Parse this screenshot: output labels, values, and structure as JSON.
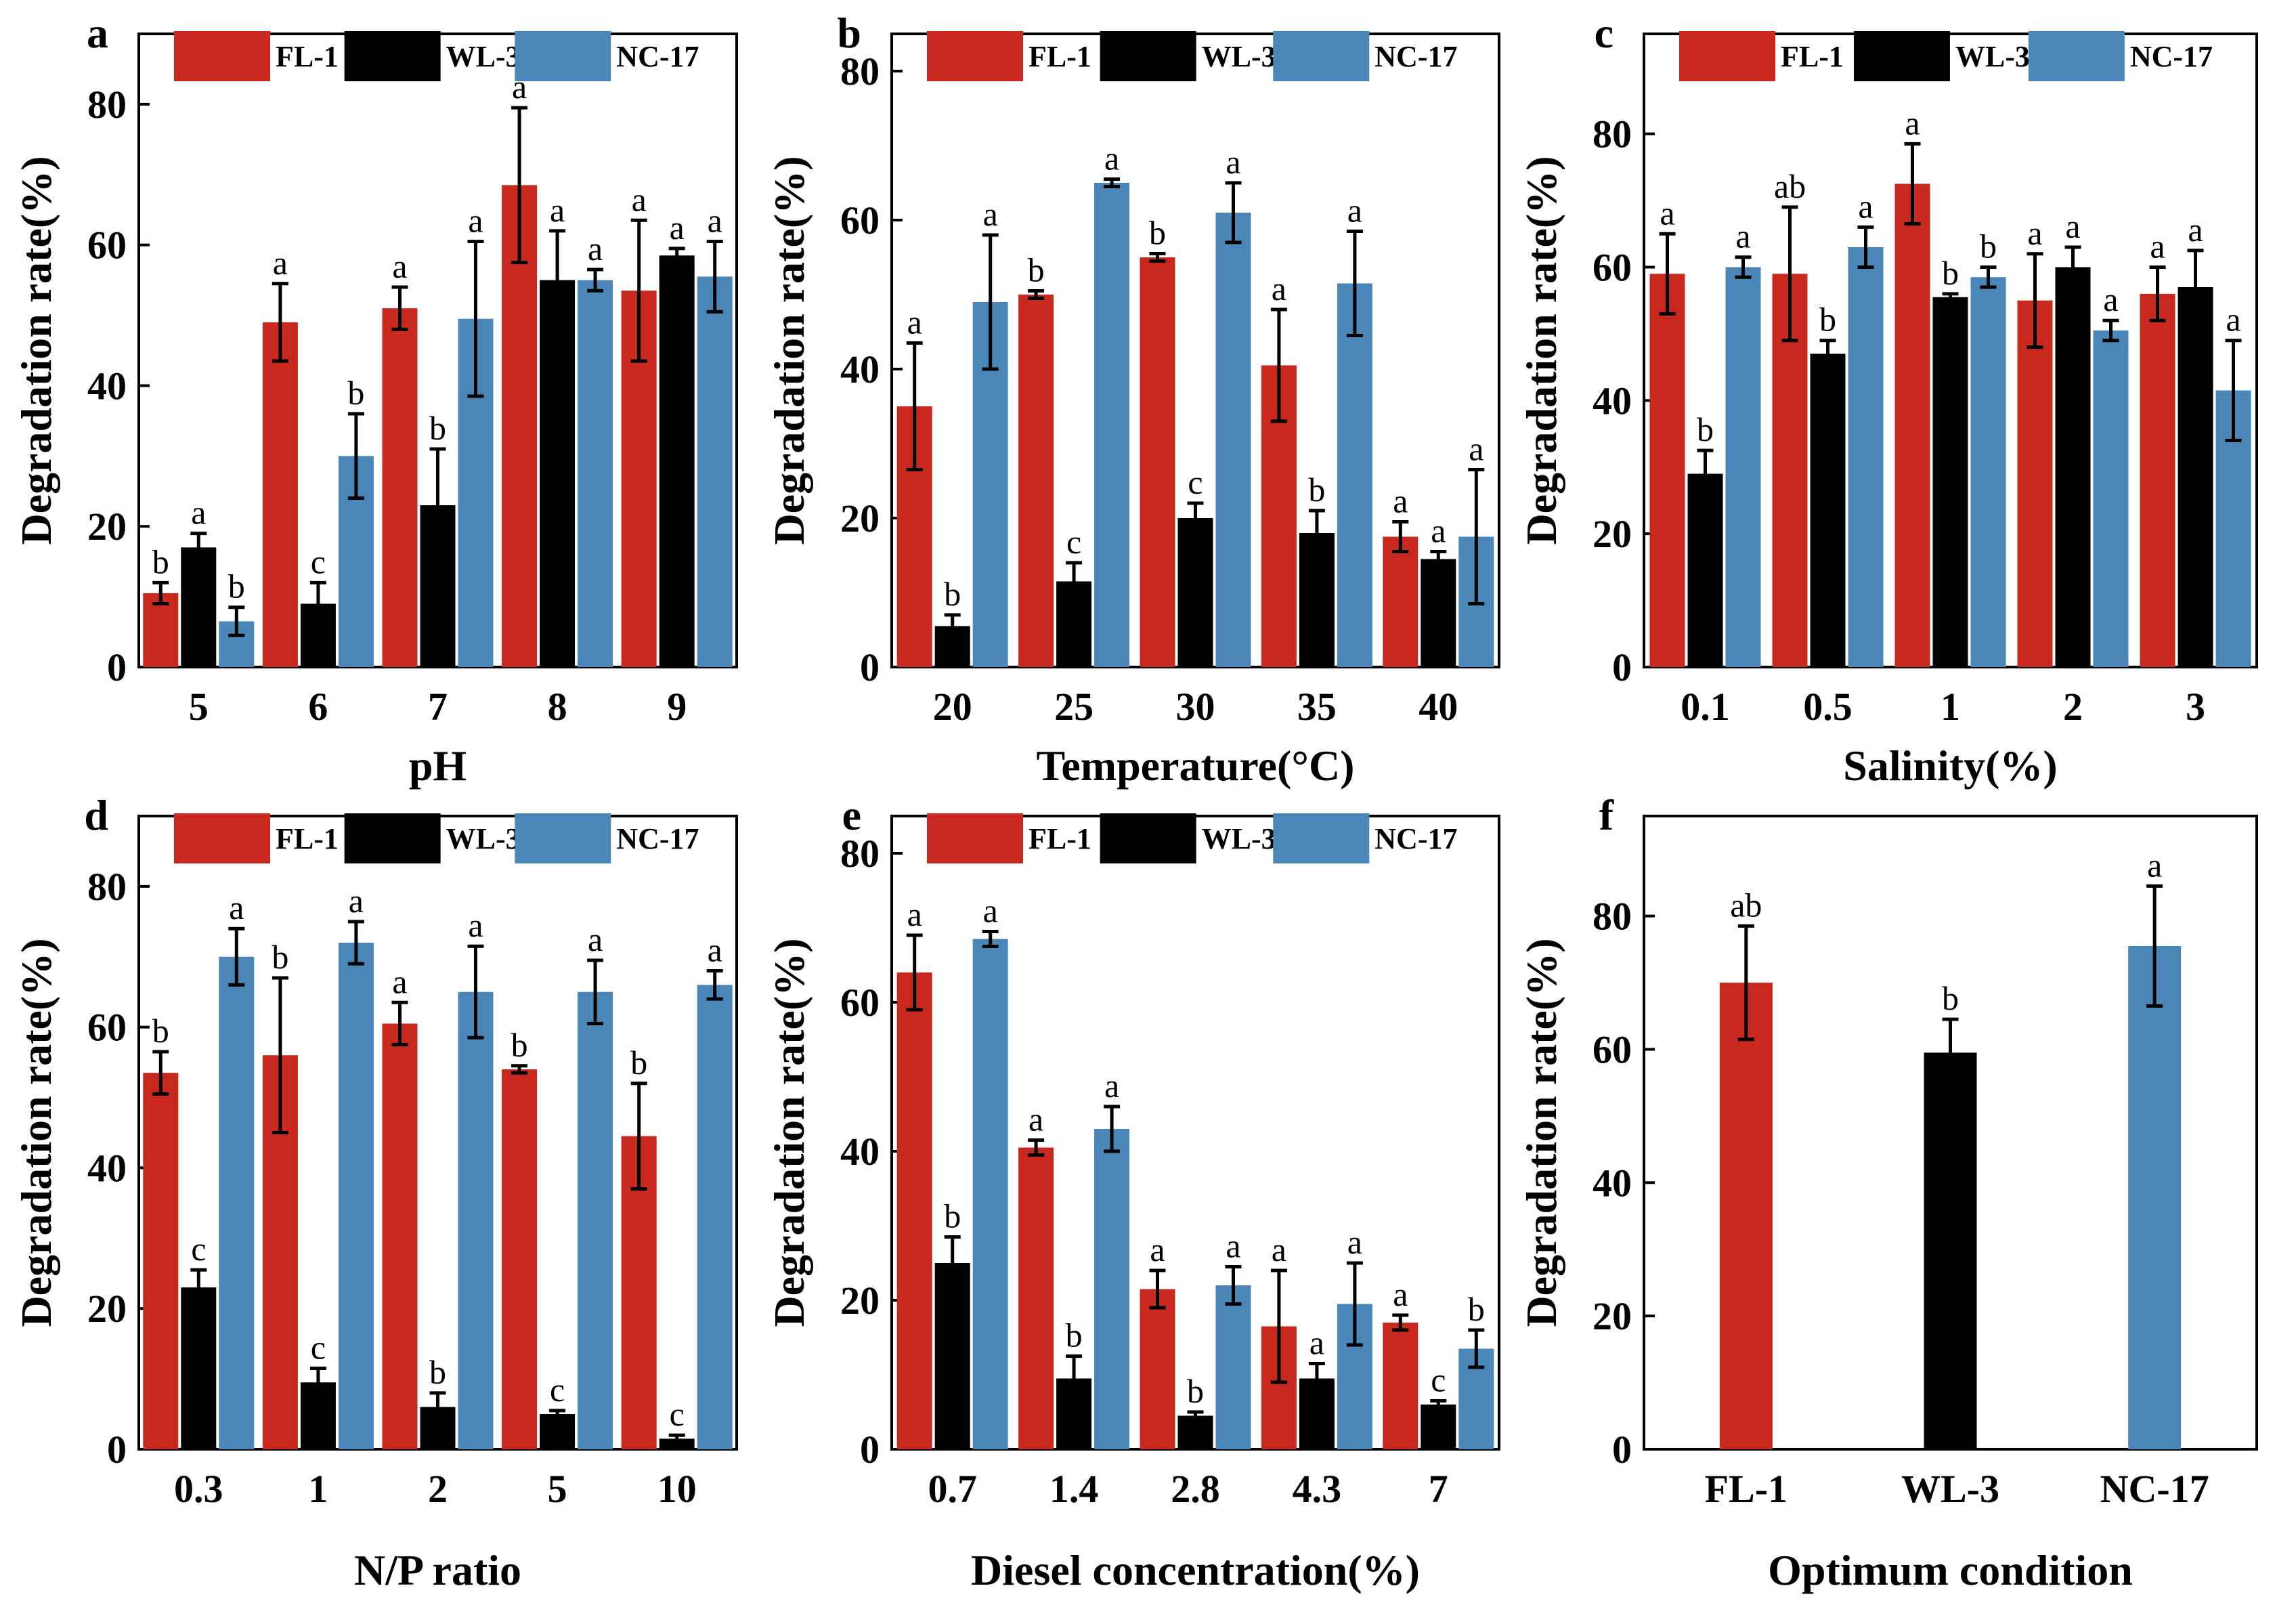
{
  "series_colors": {
    "FL-1": "#c8281e",
    "WL-3": "#000000",
    "NC-17": "#4a87b8"
  },
  "chart_data": [
    {
      "panel": "a",
      "type": "bar",
      "xlabel": "pH",
      "ylabel": "Degradation rate(%)",
      "ylim": [
        0,
        90
      ],
      "yticks": [
        0,
        20,
        40,
        60,
        80
      ],
      "legend": true,
      "categories": [
        "5",
        "6",
        "7",
        "8",
        "9"
      ],
      "series": [
        {
          "name": "FL-1",
          "values": [
            10.5,
            49,
            51,
            68.5,
            53.5
          ],
          "errors": [
            1.5,
            5.5,
            3,
            11,
            10
          ],
          "labels": [
            "b",
            "a",
            "a",
            "a",
            "a"
          ]
        },
        {
          "name": "WL-3",
          "values": [
            17,
            9,
            23,
            55,
            58.5
          ],
          "errors": [
            2,
            3,
            8,
            7,
            1
          ],
          "labels": [
            "a",
            "c",
            "b",
            "a",
            "a"
          ]
        },
        {
          "name": "NC-17",
          "values": [
            6.5,
            30,
            49.5,
            55,
            55.5
          ],
          "errors": [
            2,
            6,
            11,
            1.5,
            5
          ],
          "labels": [
            "b",
            "b",
            "a",
            "a",
            "a"
          ]
        }
      ]
    },
    {
      "panel": "b",
      "type": "bar",
      "xlabel": "Temperature(°C)",
      "ylabel": "Degradation rate(%)",
      "ylim": [
        0,
        85
      ],
      "yticks": [
        0,
        20,
        40,
        60,
        80
      ],
      "legend": true,
      "categories": [
        "20",
        "25",
        "30",
        "35",
        "40"
      ],
      "series": [
        {
          "name": "FL-1",
          "values": [
            35,
            50,
            55,
            40.5,
            17.5
          ],
          "errors": [
            8.5,
            0.5,
            0.5,
            7.5,
            2
          ],
          "labels": [
            "a",
            "b",
            "b",
            "a",
            "a"
          ]
        },
        {
          "name": "WL-3",
          "values": [
            5.5,
            11.5,
            20,
            18,
            14.5
          ],
          "errors": [
            1.5,
            2.5,
            2,
            3,
            1
          ],
          "labels": [
            "b",
            "c",
            "c",
            "b",
            "a"
          ]
        },
        {
          "name": "NC-17",
          "values": [
            49,
            65,
            61,
            51.5,
            17.5
          ],
          "errors": [
            9,
            0.5,
            4,
            7,
            9
          ],
          "labels": [
            "a",
            "a",
            "a",
            "a",
            "a"
          ]
        }
      ]
    },
    {
      "panel": "c",
      "type": "bar",
      "xlabel": "Salinity(%)",
      "ylabel": "Degradation rate(%)",
      "ylim": [
        0,
        95
      ],
      "yticks": [
        0,
        20,
        40,
        60,
        80
      ],
      "legend": true,
      "categories": [
        "0.1",
        "0.5",
        "1",
        "2",
        "3"
      ],
      "series": [
        {
          "name": "FL-1",
          "values": [
            59,
            59,
            72.5,
            55,
            56
          ],
          "errors": [
            6,
            10,
            6,
            7,
            4
          ],
          "labels": [
            "a",
            "ab",
            "a",
            "a",
            "a"
          ]
        },
        {
          "name": "WL-3",
          "values": [
            29,
            47,
            55.5,
            60,
            57
          ],
          "errors": [
            3.5,
            2,
            0.5,
            3,
            5.5
          ],
          "labels": [
            "b",
            "b",
            "b",
            "a",
            "a"
          ]
        },
        {
          "name": "NC-17",
          "values": [
            60,
            63,
            58.5,
            50.5,
            41.5
          ],
          "errors": [
            1.5,
            3,
            1.5,
            1.5,
            7.5
          ],
          "labels": [
            "a",
            "a",
            "b",
            "a",
            "a"
          ]
        }
      ]
    },
    {
      "panel": "d",
      "type": "bar",
      "xlabel": "N/P ratio",
      "ylabel": "Degradation rate(%)",
      "ylim": [
        0,
        90
      ],
      "yticks": [
        0,
        20,
        40,
        60,
        80
      ],
      "legend": true,
      "categories": [
        "0.3",
        "1",
        "2",
        "5",
        "10"
      ],
      "series": [
        {
          "name": "FL-1",
          "values": [
            53.5,
            56,
            60.5,
            54,
            44.5
          ],
          "errors": [
            3,
            11,
            3,
            0.5,
            7.5
          ],
          "labels": [
            "b",
            "b",
            "a",
            "b",
            "b"
          ]
        },
        {
          "name": "WL-3",
          "values": [
            23,
            9.5,
            6,
            5,
            1.5
          ],
          "errors": [
            2.5,
            2,
            2,
            0.5,
            0.5
          ],
          "labels": [
            "c",
            "c",
            "b",
            "c",
            "c"
          ]
        },
        {
          "name": "NC-17",
          "values": [
            70,
            72,
            65,
            65,
            66
          ],
          "errors": [
            4,
            3,
            6.5,
            4.5,
            2
          ],
          "labels": [
            "a",
            "a",
            "a",
            "a",
            "a"
          ]
        }
      ]
    },
    {
      "panel": "e",
      "type": "bar",
      "xlabel": "Diesel concentration(%)",
      "ylabel": "Degradation rate(%)",
      "ylim": [
        0,
        85
      ],
      "yticks": [
        0,
        20,
        40,
        60,
        80
      ],
      "legend": true,
      "categories": [
        "0.7",
        "1.4",
        "2.8",
        "4.3",
        "7"
      ],
      "series": [
        {
          "name": "FL-1",
          "values": [
            64,
            40.5,
            21.5,
            16.5,
            17
          ],
          "errors": [
            5,
            1,
            2.5,
            7.5,
            1
          ],
          "labels": [
            "a",
            "a",
            "a",
            "a",
            "a"
          ]
        },
        {
          "name": "WL-3",
          "values": [
            25,
            9.5,
            4.5,
            9.5,
            6
          ],
          "errors": [
            3.5,
            3,
            0.5,
            2,
            0.5
          ],
          "labels": [
            "b",
            "b",
            "b",
            "a",
            "c"
          ]
        },
        {
          "name": "NC-17",
          "values": [
            68.5,
            43,
            22,
            19.5,
            13.5
          ],
          "errors": [
            1,
            3,
            2.5,
            5.5,
            2.5
          ],
          "labels": [
            "a",
            "a",
            "a",
            "a",
            "b"
          ]
        }
      ]
    },
    {
      "panel": "f",
      "type": "bar",
      "xlabel": "Optimum condition",
      "ylabel": "Degradation rate(%)",
      "ylim": [
        0,
        95
      ],
      "yticks": [
        0,
        20,
        40,
        60,
        80
      ],
      "legend": false,
      "categories": [
        "FL-1",
        "WL-3",
        "NC-17"
      ],
      "series": [
        {
          "name": "Optimum",
          "values": [
            70,
            59.5,
            75.5
          ],
          "errors": [
            8.5,
            5,
            9
          ],
          "labels": [
            "ab",
            "b",
            "a"
          ],
          "colors": [
            "FL-1",
            "WL-3",
            "NC-17"
          ]
        }
      ]
    }
  ]
}
